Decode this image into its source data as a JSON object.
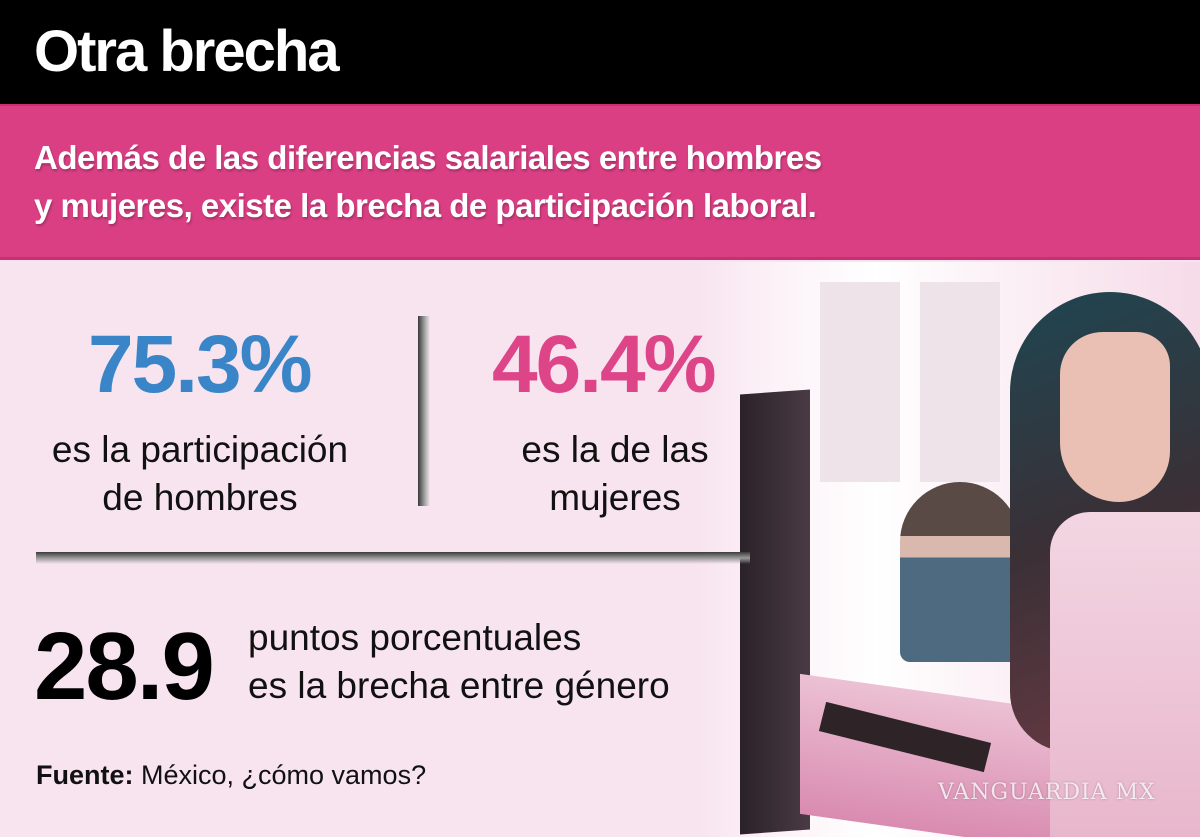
{
  "header": {
    "title": "Otra brecha"
  },
  "band": {
    "subtitle_line1": "Además de las diferencias salariales entre hombres",
    "subtitle_line2": "y mujeres, existe la brecha de participación laboral."
  },
  "stats": {
    "men": {
      "value": "75.3%",
      "line1": "es la participación",
      "line2": "de hombres",
      "color": "#3a85c8"
    },
    "women": {
      "value": "46.4%",
      "line1": "es la de las",
      "line2": "mujeres",
      "color": "#de4589"
    },
    "gap": {
      "value": "28.9",
      "line1": "puntos porcentuales",
      "line2": "es la brecha entre género"
    }
  },
  "source": {
    "label": "Fuente:",
    "text": " México, ¿cómo vamos?"
  },
  "watermark": "VANGUARDIA MX",
  "colors": {
    "header": "#000000",
    "band": "#da3f84",
    "background": "#f7e4ef"
  }
}
